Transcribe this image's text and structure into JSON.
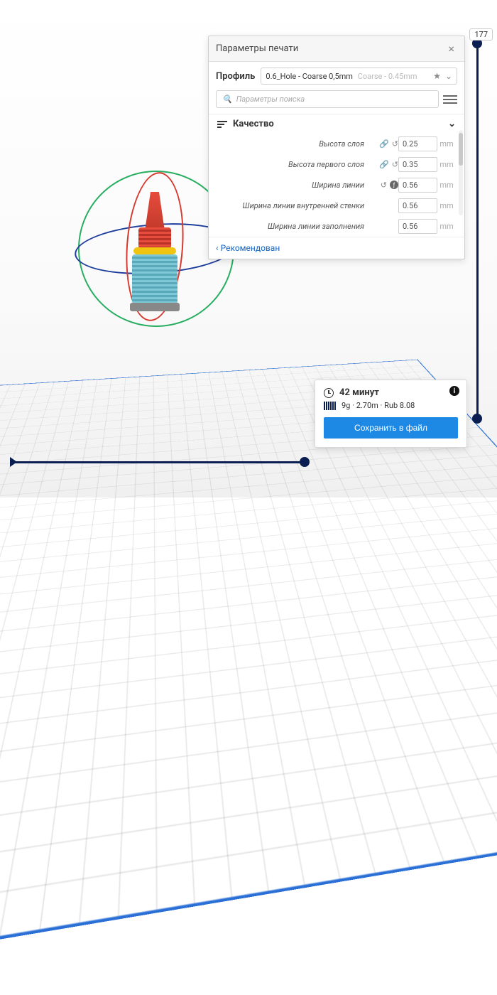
{
  "colors": {
    "accent": "#1e88e5",
    "dark": "#0a1e52",
    "panel_border": "#cfcfcf",
    "grid_line": "rgba(0,0,0,0.10)",
    "gimbal_green": "#27ae60",
    "gimbal_blue": "#1b3c9c",
    "gimbal_red": "#d63a2e",
    "model_red": "#e74c3c",
    "model_yellow": "#f1c40f",
    "model_cyan": "#7ec8d8"
  },
  "layer_badge": "177",
  "panel": {
    "title": "Параметры печати",
    "profile_label": "Профиль",
    "profile_value": "0.6_Hole  - Coarse 0,5mm",
    "profile_secondary": "Coarse - 0.45mm",
    "search_placeholder": "Параметры поиска",
    "section_title": "Качество",
    "recommended": "Рекомендован",
    "settings": [
      {
        "label": "Высота слоя",
        "icons": "link-reset",
        "value": "0.25",
        "unit": "mm",
        "indent": false
      },
      {
        "label": "Высота первого слоя",
        "icons": "link-reset",
        "value": "0.35",
        "unit": "mm",
        "indent": false
      },
      {
        "label": "Ширина линии",
        "icons": "reset-fx",
        "value": "0.56",
        "unit": "mm",
        "indent": false
      },
      {
        "label": "Ширина линии внутренней стенки",
        "icons": "",
        "value": "0.56",
        "unit": "mm",
        "indent": true
      },
      {
        "label": "Ширина линии заполнения",
        "icons": "",
        "value": "0.56",
        "unit": "mm",
        "indent": true
      }
    ]
  },
  "save": {
    "time": "42 минут",
    "material": "9g · 2.70m · Rub 8.08",
    "button": "Сохранить в файл"
  }
}
